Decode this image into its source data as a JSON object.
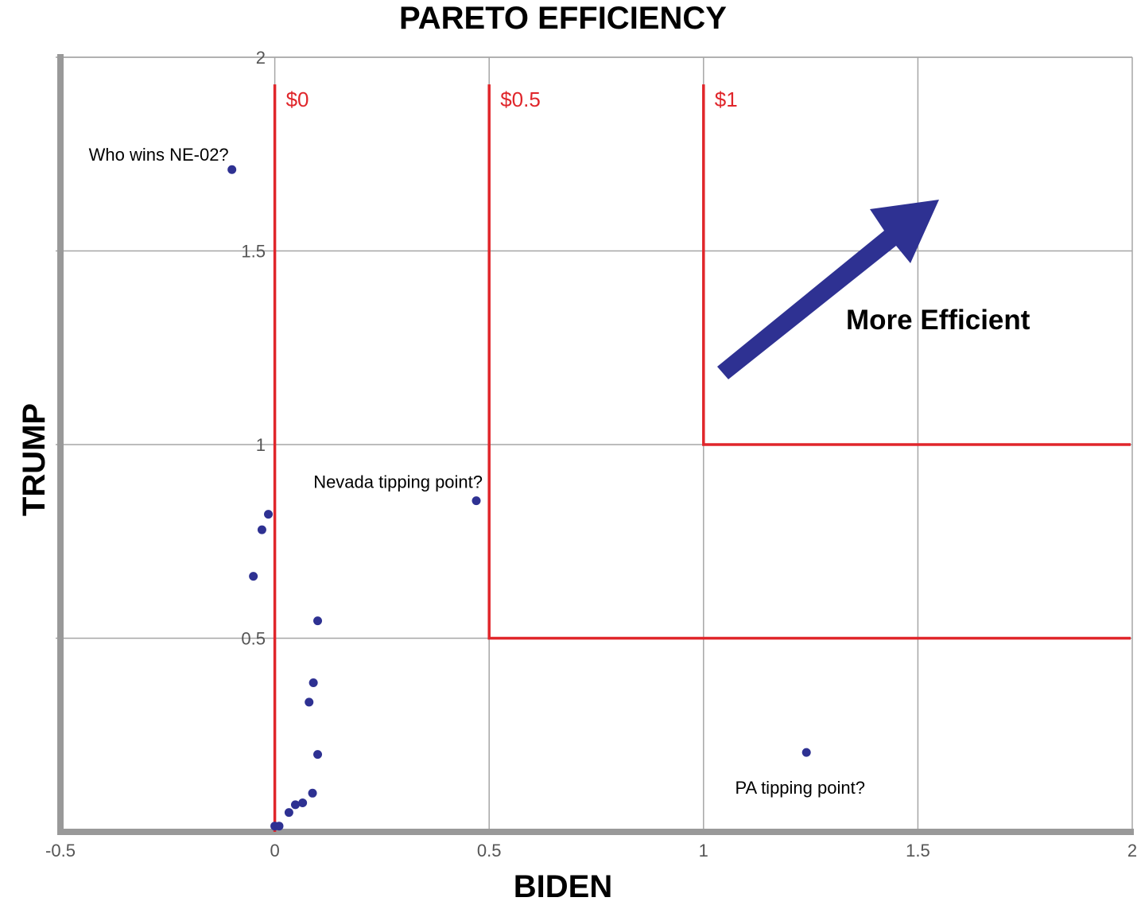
{
  "chart_data": {
    "type": "scatter",
    "title": "PARETO EFFICIENCY",
    "xlabel": "BIDEN",
    "ylabel": "TRUMP",
    "xlim": [
      -0.5,
      2
    ],
    "ylim": [
      0,
      2
    ],
    "grid": true,
    "x_ticks": [
      "-0.5",
      "0",
      "0.5",
      "1",
      "1.5",
      "2"
    ],
    "y_ticks": [
      "0.5",
      "1",
      "1.5",
      "2"
    ],
    "points": [
      {
        "x": -0.1,
        "y": 1.71
      },
      {
        "x": -0.015,
        "y": 0.82
      },
      {
        "x": -0.03,
        "y": 0.78
      },
      {
        "x": -0.05,
        "y": 0.66
      },
      {
        "x": 0.1,
        "y": 0.545
      },
      {
        "x": 0.09,
        "y": 0.385
      },
      {
        "x": 0.08,
        "y": 0.335
      },
      {
        "x": 0.1,
        "y": 0.2
      },
      {
        "x": 0.088,
        "y": 0.1
      },
      {
        "x": 0.065,
        "y": 0.075
      },
      {
        "x": 0.048,
        "y": 0.07
      },
      {
        "x": 0.033,
        "y": 0.05
      },
      {
        "x": 0.0,
        "y": 0.015
      },
      {
        "x": 0.01,
        "y": 0.015
      },
      {
        "x": 0.47,
        "y": 0.855
      },
      {
        "x": 1.24,
        "y": 0.205
      }
    ],
    "point_labels": [
      {
        "text": "Who wins NE-02?",
        "x": -0.1,
        "y": 1.71
      },
      {
        "text": "Nevada tipping point?",
        "x": 0.47,
        "y": 0.855
      },
      {
        "text": "PA tipping point?",
        "x": 1.24,
        "y": 0.205
      }
    ],
    "frontiers": [
      {
        "label": "$0",
        "x": 0,
        "y": 0
      },
      {
        "label": "$0.5",
        "x": 0.5,
        "y": 0.5
      },
      {
        "label": "$1",
        "x": 1,
        "y": 1
      }
    ],
    "arrow_label": "More Efficient",
    "colors": {
      "points": "#2e3192",
      "frontier": "#e0262b",
      "arrow": "#2e3192",
      "grid": "#a6a6a6",
      "axis": "#999999"
    }
  }
}
